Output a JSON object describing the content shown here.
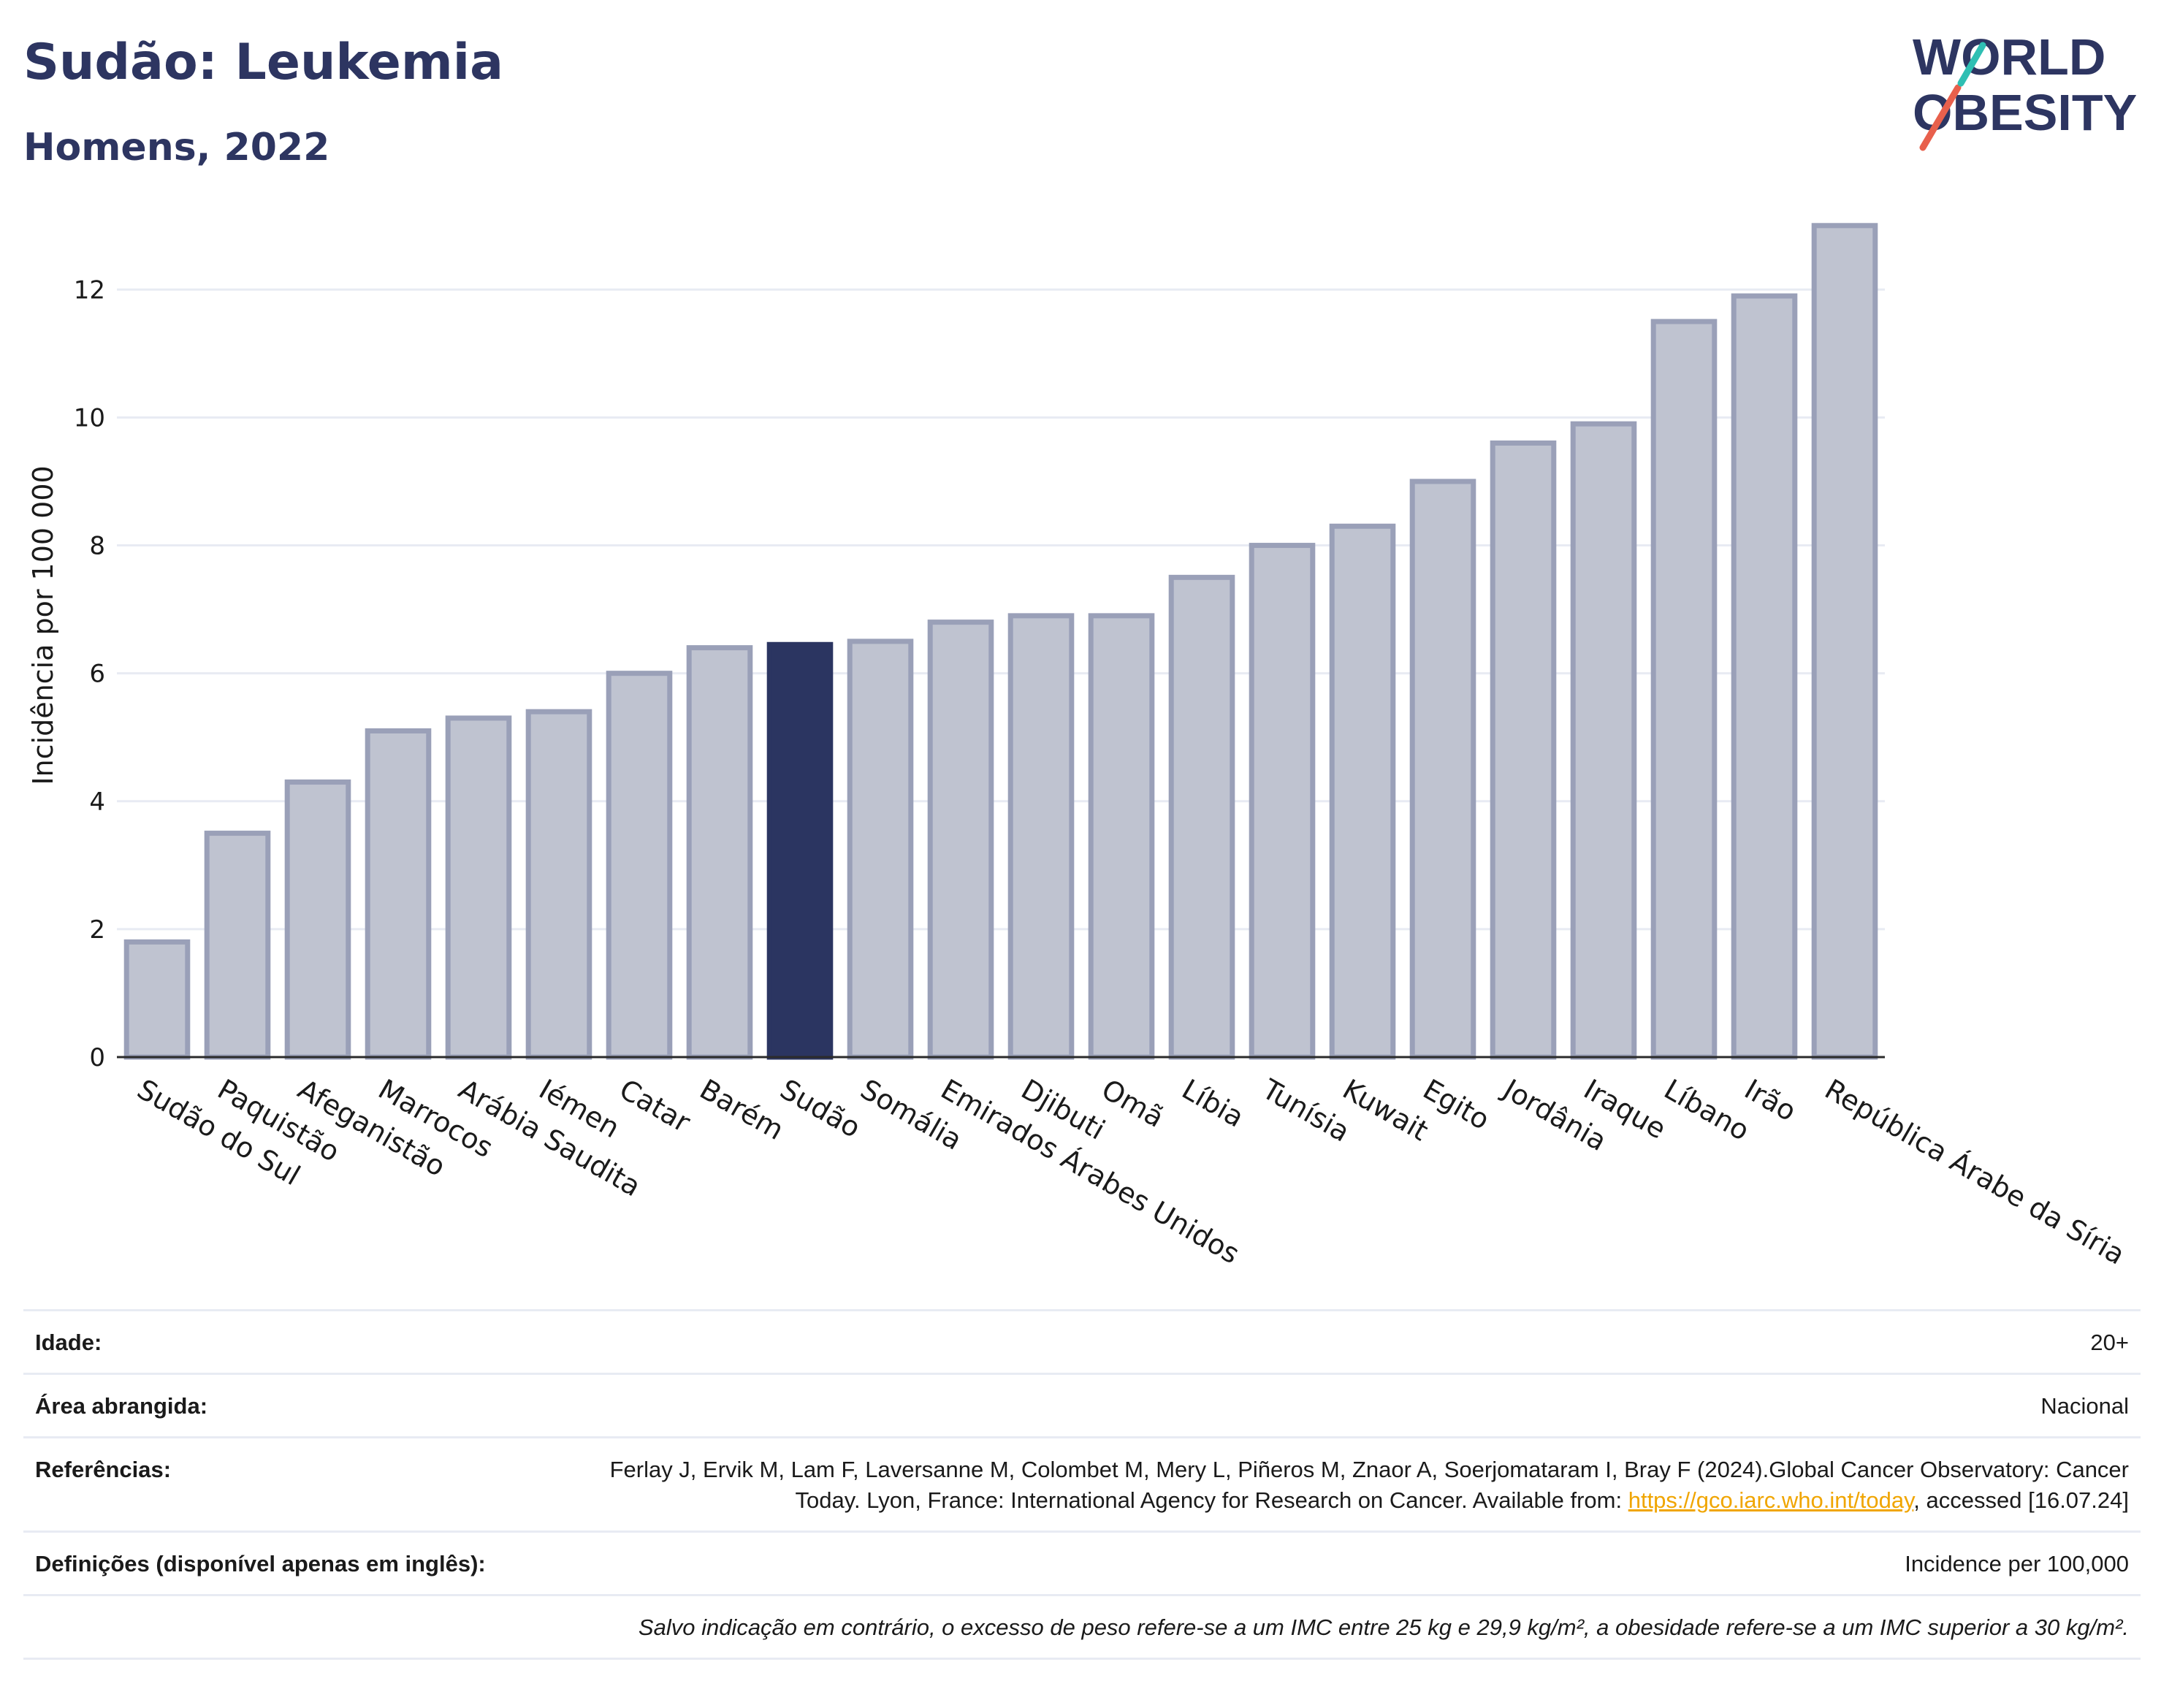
{
  "header": {
    "title": "Sudão: Leukemia",
    "subtitle": "Homens, 2022",
    "logo_line1": "WORLD",
    "logo_line2": "OBESITY"
  },
  "colors": {
    "bar_default": "#bfc3d0",
    "bar_default_stroke": "#9aa0b8",
    "bar_highlight": "#2b3561",
    "text_dark": "#2d3561",
    "logo_red": "#e8604c",
    "logo_teal": "#2fbfb3",
    "link": "#f0a500"
  },
  "chart_data": {
    "type": "bar",
    "ylabel": "Incidência por 100 000",
    "yticks": [
      0,
      2,
      4,
      6,
      8,
      10,
      12
    ],
    "ylim": [
      0,
      13.5
    ],
    "grid": true,
    "highlight": "Sudão",
    "categories": [
      "Sudão do Sul",
      "Paquistão",
      "Afeganistão",
      "Marrocos",
      "Arábia Saudita",
      "Iémen",
      "Catar",
      "Barém",
      "Sudão",
      "Somália",
      "Emirados Árabes Unidos",
      "Djibuti",
      "Omã",
      "Líbia",
      "Tunísia",
      "Kuwait",
      "Egito",
      "Jordânia",
      "Iraque",
      "Líbano",
      "Irão",
      "República Árabe da Síria"
    ],
    "values": [
      1.8,
      3.5,
      4.3,
      5.1,
      5.3,
      5.4,
      6.0,
      6.4,
      6.45,
      6.5,
      6.8,
      6.9,
      6.9,
      7.5,
      8.0,
      8.3,
      9.0,
      9.6,
      9.9,
      11.5,
      11.9,
      13.0
    ]
  },
  "meta": {
    "age_label": "Idade:",
    "age_value": "20+",
    "area_label": "Área abrangida:",
    "area_value": "Nacional",
    "ref_label": "Referências:",
    "ref_text_1": "Ferlay J, Ervik M, Lam F, Laversanne M, Colombet M, Mery L, Piñeros M, Znaor A, Soerjomataram I, Bray F (2024).Global Cancer Observatory: Cancer Today. Lyon, France: International Agency for Research on Cancer. Available from: ",
    "ref_link": "https://gco.iarc.who.int/today",
    "ref_text_2": ", accessed [16.07.24]",
    "def_label": "Definições (disponível apenas em inglês):",
    "def_value": "Incidence per 100,000",
    "note": "Salvo indicação em contrário, o excesso de peso refere-se a um IMC entre 25 kg e 29,9 kg/m², a obesidade refere-se a um IMC superior a 30 kg/m²."
  }
}
